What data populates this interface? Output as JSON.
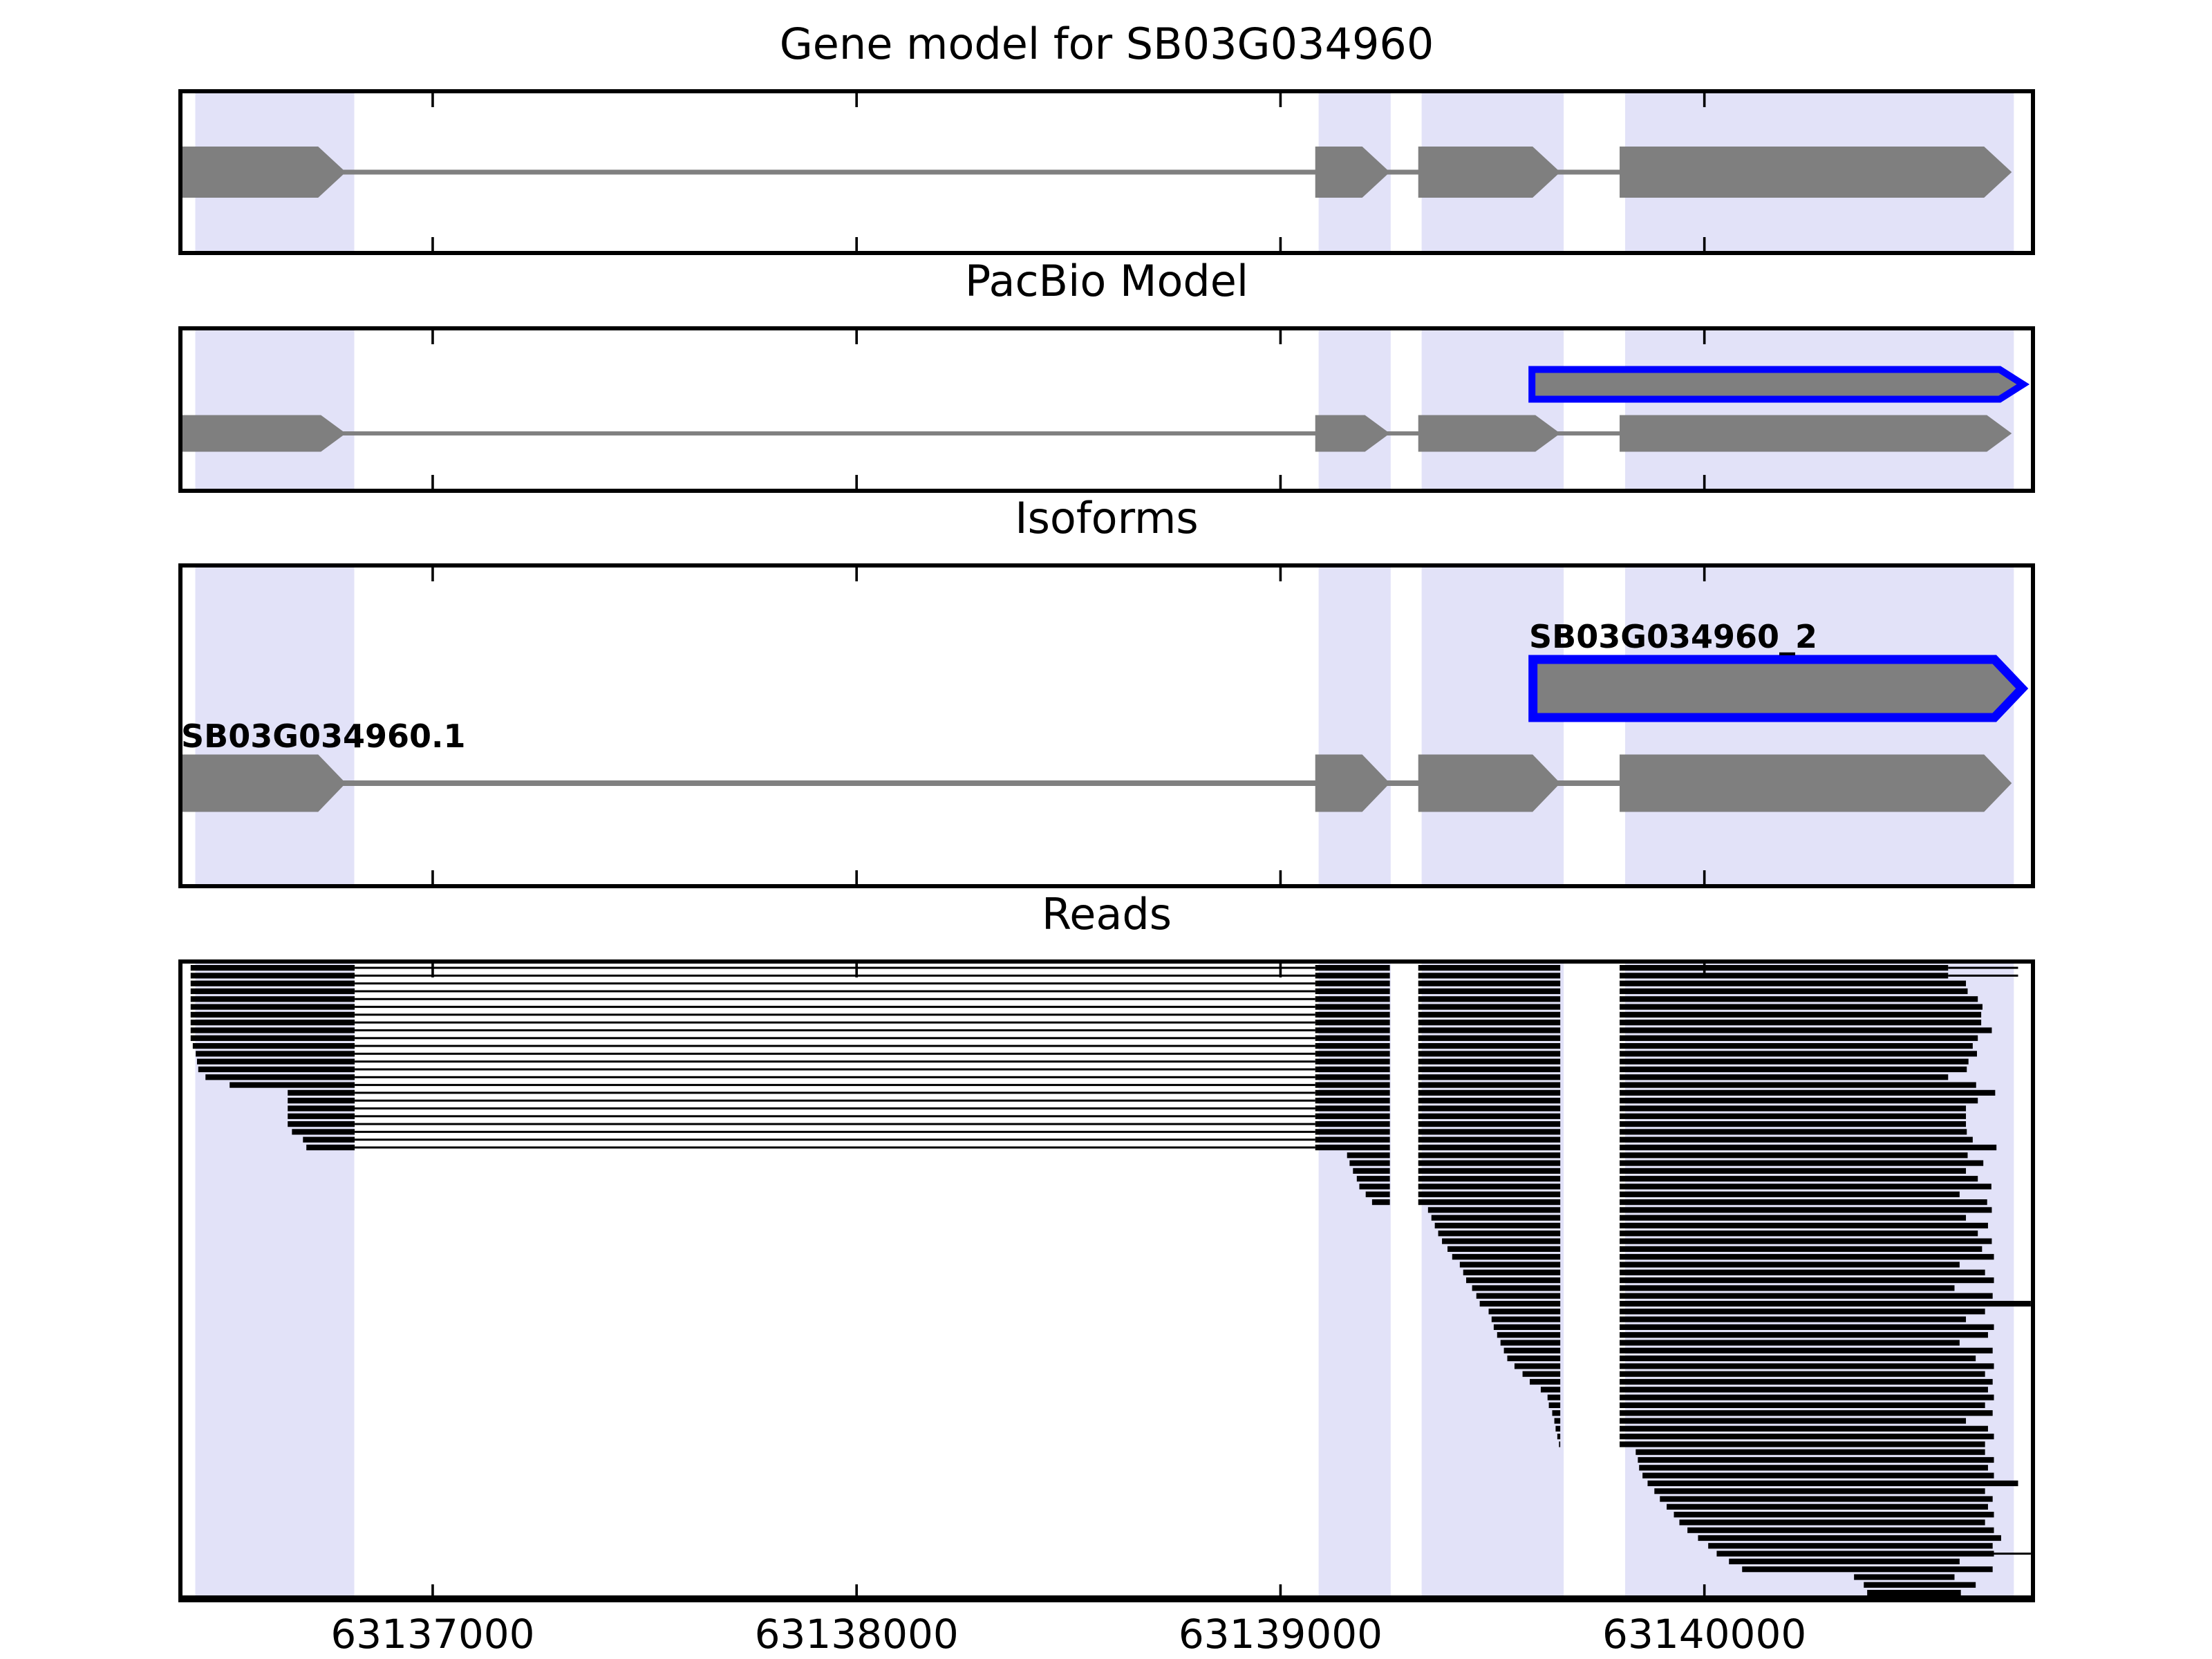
{
  "chart_data": {
    "type": "other",
    "subtype": "genome-browser-tracks",
    "panels": [
      {
        "id": "gene-model",
        "title": "Gene model for SB03G034960"
      },
      {
        "id": "pacbio",
        "title": "PacBio Model"
      },
      {
        "id": "isoforms",
        "title": "Isoforms"
      },
      {
        "id": "reads",
        "title": "Reads"
      }
    ],
    "axis": {
      "x_min": 63136400,
      "x_max": 63140780,
      "tick_values": [
        63137000,
        63138000,
        63139000,
        63140000
      ],
      "tick_labels": [
        "63137000",
        "63138000",
        "63139000",
        "63140000"
      ],
      "grid": false,
      "tick_direction": "in-both-edges"
    },
    "highlight_regions": [
      {
        "start": 63136440,
        "end": 63136815
      },
      {
        "start": 63139090,
        "end": 63139260
      },
      {
        "start": 63139333,
        "end": 63139668
      },
      {
        "start": 63139813,
        "end": 63140730
      }
    ],
    "transcripts": {
      "gene_model": {
        "strand": "+",
        "exons": [
          {
            "start": 63136400,
            "end": 63136795
          },
          {
            "start": 63139082,
            "end": 63139258
          },
          {
            "start": 63139325,
            "end": 63139660
          },
          {
            "start": 63139800,
            "end": 63140725
          }
        ]
      },
      "pacbio_isoform": {
        "label": "SB03G034960_2",
        "strand": "+",
        "exons": [
          {
            "start": 63139585,
            "end": 63140760
          }
        ]
      },
      "reference_isoform": {
        "label": "SB03G034960.1",
        "strand": "+",
        "exons": [
          {
            "start": 63136400,
            "end": 63136795
          },
          {
            "start": 63139082,
            "end": 63139258
          },
          {
            "start": 63139325,
            "end": 63139660
          },
          {
            "start": 63139800,
            "end": 63140725
          }
        ]
      }
    },
    "read_splice_model": {
      "e1_end": 63136816,
      "e2_start": 63139082,
      "e2_end": 63139258,
      "e3_start": 63139325,
      "e3_end": 63139660,
      "e4_start": 63139800
    },
    "reads": [
      [
        63136429,
        63140575,
        "A",
        63140740
      ],
      [
        63136429,
        63140575,
        "A",
        63140740
      ],
      [
        63136429,
        63140617,
        "A"
      ],
      [
        63136429,
        63140621,
        "A"
      ],
      [
        63136429,
        63140645,
        "A"
      ],
      [
        63136429,
        63140656,
        "A"
      ],
      [
        63136429,
        63140653,
        "A"
      ],
      [
        63136429,
        63140653,
        "A"
      ],
      [
        63136429,
        63140678,
        "A"
      ],
      [
        63136429,
        63140645,
        "A"
      ],
      [
        63136434,
        63140633,
        "A"
      ],
      [
        63136441,
        63140643,
        "A"
      ],
      [
        63136444,
        63140623,
        "A"
      ],
      [
        63136447,
        63140619,
        "A"
      ],
      [
        63136464,
        63140575,
        "A"
      ],
      [
        63136521,
        63140641,
        "A"
      ],
      [
        63136658,
        63140686,
        "A"
      ],
      [
        63136658,
        63140645,
        "A"
      ],
      [
        63136658,
        63140617,
        "A"
      ],
      [
        63136658,
        63140617,
        "A"
      ],
      [
        63136658,
        63140617,
        "A"
      ],
      [
        63136668,
        63140619,
        "A"
      ],
      [
        63136694,
        63140633,
        "A"
      ],
      [
        63136702,
        63140689,
        "A"
      ],
      [
        63139157,
        63140621,
        "B"
      ],
      [
        63139163,
        63140658,
        "B"
      ],
      [
        63139171,
        63140617,
        "B"
      ],
      [
        63139180,
        63140645,
        "B"
      ],
      [
        63139186,
        63140677,
        "B"
      ],
      [
        63139201,
        63140602,
        "B"
      ],
      [
        63139216,
        63140667,
        "B"
      ],
      [
        63139348,
        63140678,
        "C"
      ],
      [
        63139356,
        63140617,
        "C"
      ],
      [
        63139364,
        63140669,
        "C"
      ],
      [
        63139372,
        63140645,
        "C"
      ],
      [
        63139381,
        63140678,
        "C"
      ],
      [
        63139394,
        63140655,
        "C"
      ],
      [
        63139405,
        63140683,
        "C"
      ],
      [
        63139423,
        63140602,
        "C"
      ],
      [
        63139431,
        63140662,
        "C"
      ],
      [
        63139438,
        63140683,
        "C"
      ],
      [
        63139452,
        63140590,
        "C"
      ],
      [
        63139462,
        63140680,
        "C"
      ],
      [
        63139470,
        63140770,
        "C"
      ],
      [
        63139491,
        63140662,
        "C"
      ],
      [
        63139498,
        63140617,
        "C"
      ],
      [
        63139503,
        63140683,
        "C"
      ],
      [
        63139511,
        63140669,
        "C"
      ],
      [
        63139519,
        63140602,
        "C"
      ],
      [
        63139527,
        63140680,
        "C"
      ],
      [
        63139535,
        63140640,
        "C"
      ],
      [
        63139552,
        63140683,
        "C"
      ],
      [
        63139571,
        63140662,
        "C"
      ],
      [
        63139588,
        63140680,
        "C"
      ],
      [
        63139614,
        63140669,
        "C"
      ],
      [
        63139630,
        63140683,
        "C"
      ],
      [
        63139633,
        63140662,
        "C"
      ],
      [
        63139641,
        63140680,
        "C"
      ],
      [
        63139646,
        63140617,
        "C"
      ],
      [
        63139649,
        63140669,
        "C"
      ],
      [
        63139653,
        63140683,
        "C"
      ],
      [
        63139657,
        63140662,
        "C"
      ],
      [
        63139838,
        63140662,
        "D"
      ],
      [
        63139843,
        63140683,
        "D"
      ],
      [
        63139846,
        63140669,
        "D"
      ],
      [
        63139854,
        63140683,
        "D"
      ],
      [
        63139866,
        63140740,
        "D"
      ],
      [
        63139882,
        63140662,
        "D"
      ],
      [
        63139895,
        63140680,
        "D"
      ],
      [
        63139911,
        63140669,
        "D"
      ],
      [
        63139928,
        63140683,
        "D"
      ],
      [
        63139941,
        63140662,
        "D"
      ],
      [
        63139960,
        63140683,
        "D"
      ],
      [
        63139985,
        63140700,
        "D"
      ],
      [
        63140009,
        63140680,
        "D"
      ],
      [
        63140029,
        63140683,
        "D",
        63140770
      ],
      [
        63140058,
        63140602,
        "D"
      ],
      [
        63140089,
        63140680,
        "D"
      ],
      [
        63140353,
        63140590,
        "D"
      ],
      [
        63140376,
        63140640,
        "D"
      ],
      [
        63140384,
        63140605,
        "D"
      ]
    ],
    "colors": {
      "highlight_band": "#E2E2F8",
      "feature_gray": "#7F7F7F",
      "intron_gray": "#808080",
      "novel_isoform_outline": "#0000FF",
      "read_black": "#000000",
      "axis_black": "#000000",
      "background": "#FFFFFF"
    }
  }
}
